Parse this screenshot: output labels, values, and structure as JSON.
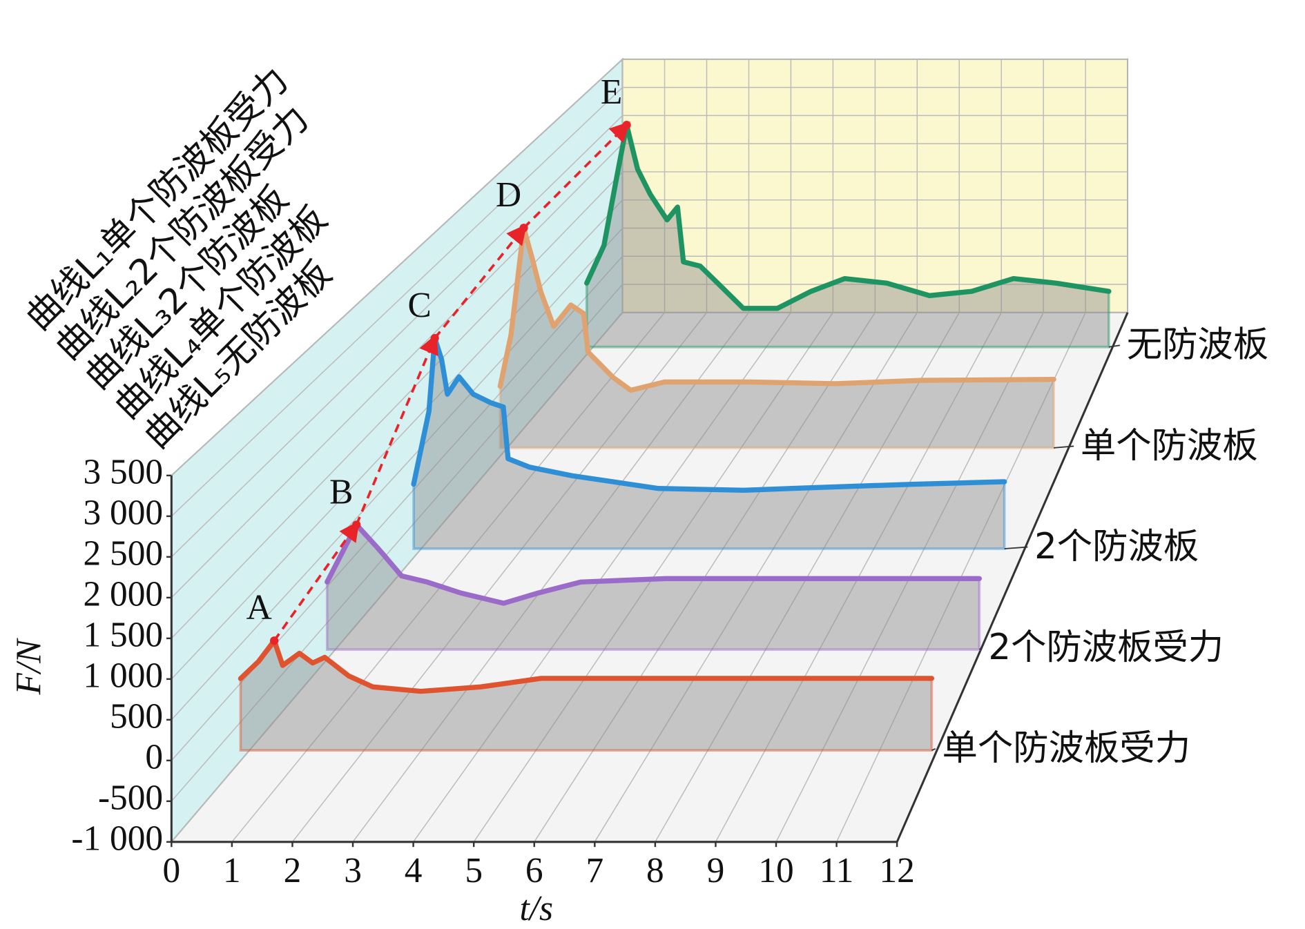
{
  "chart_data": {
    "type": "line3d",
    "x_label": "t/s",
    "y_label": "F/N",
    "xlim": [
      0,
      12
    ],
    "xticks": [
      0,
      1,
      2,
      3,
      4,
      5,
      6,
      7,
      8,
      9,
      10,
      11,
      12
    ],
    "ylim": [
      -1000,
      3500
    ],
    "yticks": [
      {
        "value": -1000,
        "label": "-1 000"
      },
      {
        "value": -500,
        "label": "-500"
      },
      0,
      500,
      {
        "value": 1000,
        "label": "1 000"
      },
      {
        "value": 1500,
        "label": "1 500"
      },
      {
        "value": 2000,
        "label": "2 000"
      },
      {
        "value": 2500,
        "label": "2 500"
      },
      {
        "value": 3000,
        "label": "3 000"
      },
      {
        "value": 3500,
        "label": "3 500"
      }
    ],
    "grid": true,
    "series": [
      {
        "name": "曲线L₁单个防波板受力",
        "label": "单个防波板受力",
        "color": "#e0532f",
        "x": [
          1.0,
          1.3,
          1.56,
          1.7,
          1.98,
          2.2,
          2.4,
          2.8,
          3.2,
          4,
          5,
          6,
          8,
          10,
          12.5
        ],
        "values": [
          888,
          1100,
          1356,
          1050,
          1200,
          1080,
          1150,
          920,
          785,
          730,
          785,
          890,
          890,
          890,
          890
        ]
      },
      {
        "name": "曲线L₂2个防波板受力",
        "label": "2个防波板受力",
        "color": "#9b6bc9",
        "x": [
          1.0,
          1.52,
          1.87,
          2.0,
          2.32,
          2.77,
          3.37,
          4.13,
          4.74,
          5.5,
          7,
          10,
          12.56
        ],
        "values": [
          890,
          1644,
          1360,
          1250,
          970,
          890,
          745,
          610,
          745,
          890,
          935,
          935,
          935
        ]
      },
      {
        "name": "曲线L₃2个防波板",
        "label": "2个防波板",
        "color": "#2f8fd6",
        "x": [
          1.0,
          1.29,
          1.4,
          1.53,
          1.64,
          1.86,
          2.13,
          2.46,
          2.7,
          2.79,
          3.2,
          4.0,
          5.64,
          7.26,
          8.9,
          10.5,
          12.2
        ],
        "values": [
          910,
          1940,
          2970,
          2670,
          2180,
          2425,
          2180,
          2060,
          2000,
          1270,
          1150,
          1030,
          850,
          825,
          870,
          910,
          945
        ]
      },
      {
        "name": "曲线L₄单个防波板",
        "label": "单个防波板",
        "color": "#e0a36f",
        "x": [
          1.0,
          1.22,
          1.48,
          1.65,
          1.83,
          2.09,
          2.44,
          2.7,
          2.79,
          3.3,
          3.66,
          4.35,
          6.1,
          7.84,
          9.58,
          12.28
        ],
        "values": [
          935,
          1715,
          3340,
          2885,
          2365,
          1845,
          2170,
          2040,
          1455,
          1070,
          875,
          1000,
          1000,
          975,
          1025,
          1040
        ]
      },
      {
        "name": "曲线L₅无防波板",
        "label": "无防波板",
        "color": "#1f9463",
        "x": [
          1.0,
          1.38,
          1.66,
          1.88,
          2.12,
          2.4,
          2.77,
          3.0,
          3.13,
          3.5,
          3.98,
          4.45,
          5.2,
          5.94,
          6.68,
          7.61,
          8.55,
          9.48,
          10.4,
          11.34,
          12.5
        ],
        "values": [
          1050,
          1670,
          2790,
          3650,
          2925,
          2510,
          2090,
          2300,
          1400,
          1330,
          980,
          635,
          635,
          915,
          1125,
          1050,
          845,
          915,
          1125,
          1050,
          915
        ]
      }
    ],
    "annotations": [
      {
        "label": "A",
        "x": 1.56,
        "y": 1356
      },
      {
        "label": "B",
        "x": 1.52,
        "y": 1644
      },
      {
        "label": "C",
        "x": 1.4,
        "y": 2970
      },
      {
        "label": "D",
        "x": 1.48,
        "y": 3340
      },
      {
        "label": "E",
        "x": 1.88,
        "y": 3650
      }
    ]
  }
}
